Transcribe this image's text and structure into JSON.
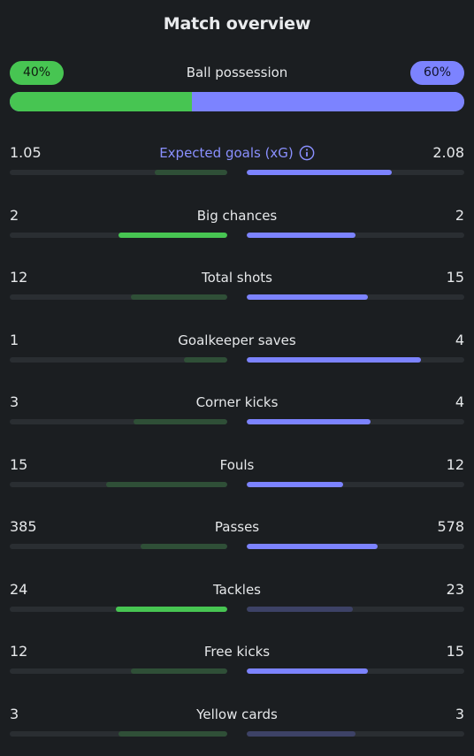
{
  "title": "Match overview",
  "possession": {
    "label": "Ball possession",
    "home_label": "40%",
    "away_label": "60%",
    "home_pct": 40,
    "away_pct": 60
  },
  "colors": {
    "home_strong": "#47c552",
    "home_weak": "#2f4f37",
    "away_strong": "#7c83ff",
    "away_weak": "#3d4266",
    "accent_text": "#8a90ff"
  },
  "stats": [
    {
      "label": "Expected goals (xG)",
      "home": "1.05",
      "away": "2.08",
      "home_ratio": 0.335,
      "away_ratio": 0.665,
      "winner": "away",
      "info_icon": "info-icon",
      "accent": true
    },
    {
      "label": "Big chances",
      "home": "2",
      "away": "2",
      "home_ratio": 0.5,
      "away_ratio": 0.5,
      "winner": "both"
    },
    {
      "label": "Total shots",
      "home": "12",
      "away": "15",
      "home_ratio": 0.444,
      "away_ratio": 0.556,
      "winner": "away"
    },
    {
      "label": "Goalkeeper saves",
      "home": "1",
      "away": "4",
      "home_ratio": 0.2,
      "away_ratio": 0.8,
      "winner": "away"
    },
    {
      "label": "Corner kicks",
      "home": "3",
      "away": "4",
      "home_ratio": 0.429,
      "away_ratio": 0.571,
      "winner": "away"
    },
    {
      "label": "Fouls",
      "home": "15",
      "away": "12",
      "home_ratio": 0.556,
      "away_ratio": 0.444,
      "winner": "away"
    },
    {
      "label": "Passes",
      "home": "385",
      "away": "578",
      "home_ratio": 0.4,
      "away_ratio": 0.6,
      "winner": "away"
    },
    {
      "label": "Tackles",
      "home": "24",
      "away": "23",
      "home_ratio": 0.511,
      "away_ratio": 0.489,
      "winner": "home"
    },
    {
      "label": "Free kicks",
      "home": "12",
      "away": "15",
      "home_ratio": 0.444,
      "away_ratio": 0.556,
      "winner": "away"
    },
    {
      "label": "Yellow cards",
      "home": "3",
      "away": "3",
      "home_ratio": 0.5,
      "away_ratio": 0.5,
      "winner": "none"
    }
  ]
}
